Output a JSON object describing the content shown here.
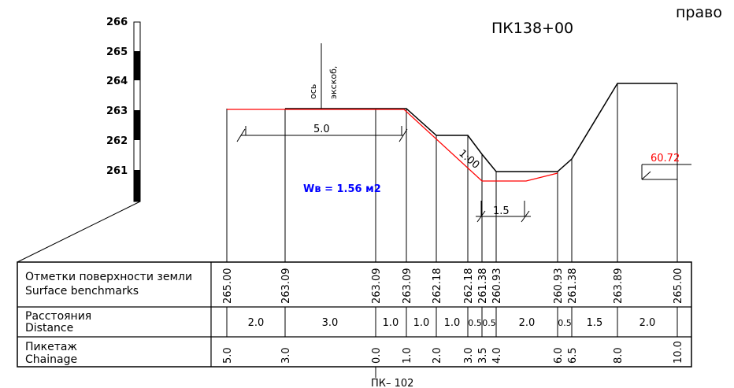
{
  "header": {
    "side_label": "право",
    "station_title": "ПК138+00"
  },
  "scale_bar": {
    "labels": [
      "266",
      "265",
      "264",
      "263",
      "262",
      "261"
    ]
  },
  "axis_label": {
    "line1": "ось",
    "line2": "экскоб,"
  },
  "profile": {
    "width_dim": "5.0",
    "slope_label": "1:00",
    "ditch_width_dim": "1.5",
    "area_label": "Wв = 1.56 м2",
    "level_mark": "60.72"
  },
  "table": {
    "rows": [
      {
        "label_ru": "Отметки поверхности земли",
        "label_en": "Surface benchmarks"
      },
      {
        "label_ru": "Расстояния",
        "label_en": "Distance"
      },
      {
        "label_ru": "Пикетаж",
        "label_en": "Chainage"
      }
    ],
    "elevations": [
      "265.00",
      "263.09",
      "263.09",
      "263.09",
      "262.18",
      "262.18",
      "261.38",
      "260.93",
      "260.93",
      "261.38",
      "263.89",
      "265.00"
    ],
    "distances": [
      "2.0",
      "3.0",
      "1.0",
      "1.0",
      "1.0",
      "0.5",
      "0.5",
      "2.0",
      "0.5",
      "1.5",
      "2.0"
    ],
    "chainages": [
      "5.0",
      "3.0",
      "0.0",
      "1.0",
      "2.0",
      "3.0",
      "3.5",
      "4.0",
      "6.0",
      "6.5",
      "8.0",
      "10.0"
    ]
  },
  "footer": {
    "picket_label": "ПК– 102"
  },
  "colors": {
    "design_line": "#ff0000",
    "area_text": "#0000ff",
    "level_text": "#ff0000",
    "lines": "#000000"
  }
}
